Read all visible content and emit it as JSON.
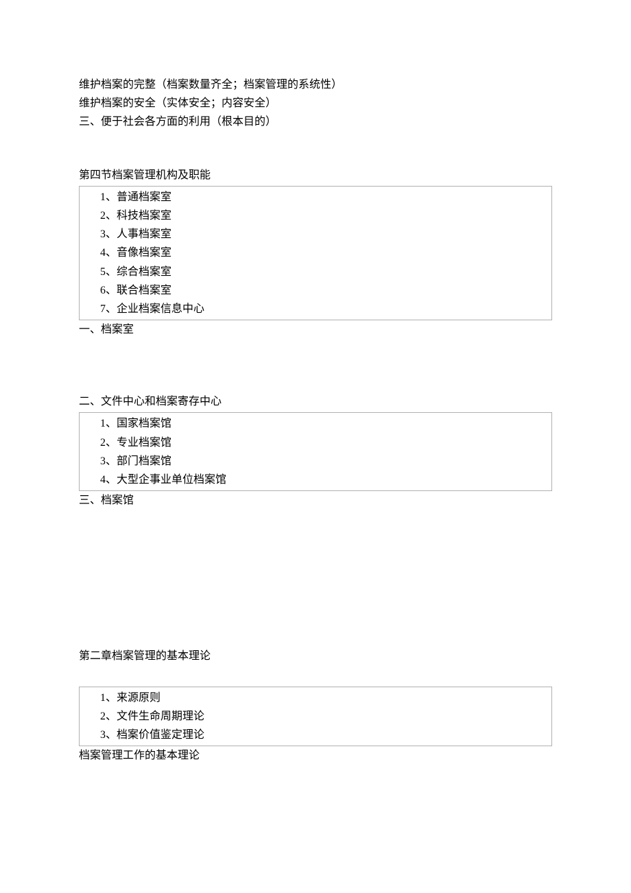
{
  "intro": {
    "line1": "维护档案的完整（档案数量齐全；档案管理的系统性）",
    "line2": "维护档案的安全（实体安全；内容安全）",
    "line3": "三、便于社会各方面的利用（根本目的）"
  },
  "section4": {
    "heading": "第四节档案管理机构及职能",
    "box1_items": [
      "1、普通档案室",
      "2、科技档案室",
      "3、人事档案室",
      "4、音像档案室",
      "5、综合档案室",
      "6、联合档案室",
      "7、企业档案信息中心"
    ],
    "sub1_label": "一、档案室",
    "sub2_label": "二、文件中心和档案寄存中心",
    "box2_items": [
      "1、国家档案馆",
      "2、专业档案馆",
      "3、部门档案馆",
      "4、大型企事业单位档案馆"
    ],
    "sub3_label": "三、档案馆"
  },
  "chapter2": {
    "heading": "第二章档案管理的基本理论",
    "box_items": [
      "1、来源原则",
      "2、文件生命周期理论",
      "3、档案价值鉴定理论"
    ],
    "sub_label": "档案管理工作的基本理论"
  },
  "colors": {
    "background": "#ffffff",
    "text": "#000000",
    "box_border": "#b0b0b0"
  },
  "typography": {
    "font_family": "SimSun",
    "font_size_pt": 12,
    "line_height": 1.7
  }
}
